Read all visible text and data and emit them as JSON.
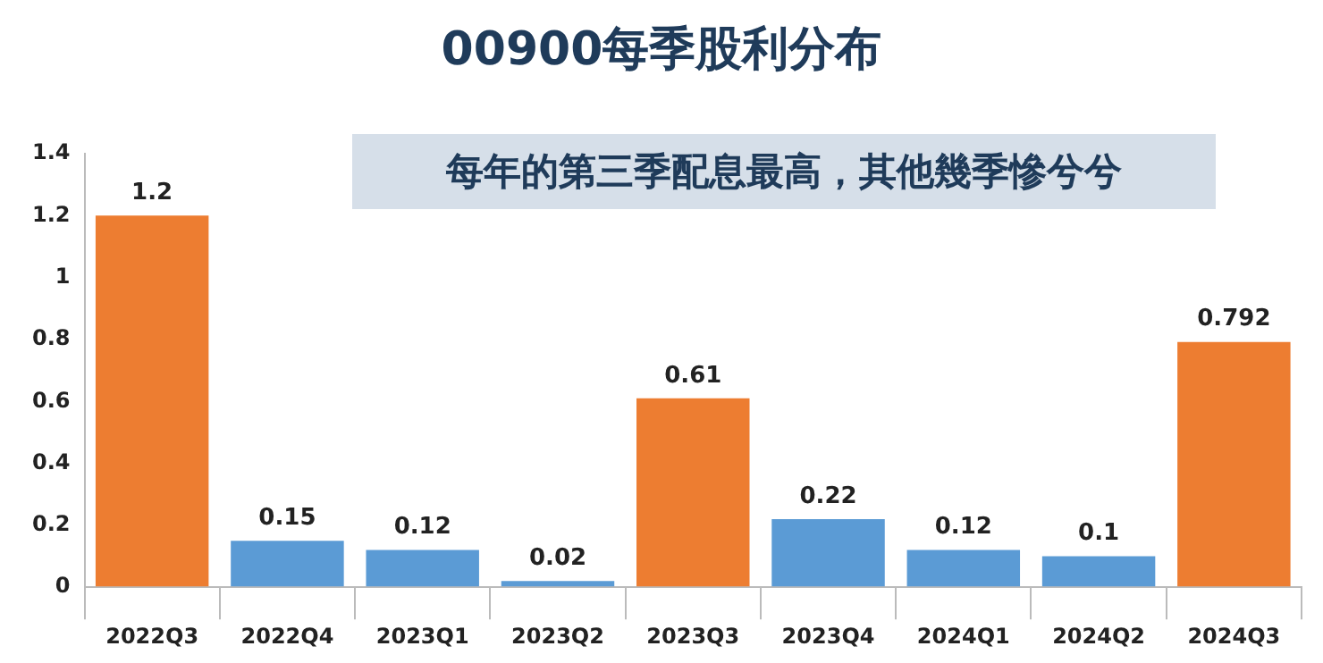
{
  "chart_data": {
    "type": "bar",
    "title": "00900每季股利分布",
    "annotations": [
      "每年的第三季配息最高，其他幾季慘兮兮"
    ],
    "categories": [
      "2022Q3",
      "2022Q4",
      "2023Q1",
      "2023Q2",
      "2023Q3",
      "2023Q4",
      "2024Q1",
      "2024Q2",
      "2024Q3"
    ],
    "values": [
      1.2,
      0.15,
      0.12,
      0.02,
      0.61,
      0.22,
      0.12,
      0.1,
      0.792
    ],
    "colors": [
      "#ed7d31",
      "#5b9bd5",
      "#5b9bd5",
      "#5b9bd5",
      "#ed7d31",
      "#5b9bd5",
      "#5b9bd5",
      "#5b9bd5",
      "#ed7d31"
    ],
    "ylim": [
      0,
      1.4
    ],
    "yticks": [
      0,
      0.2,
      0.4,
      0.6,
      0.8,
      1,
      1.2,
      1.4
    ],
    "data_labels": true,
    "grid": false,
    "legend": false
  }
}
